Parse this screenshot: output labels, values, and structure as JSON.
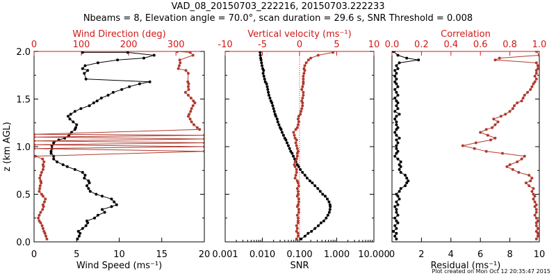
{
  "figure": {
    "title_line1": "VAD_08_20150703_222216, 20150703.222233",
    "title_line2": "Nbeams = 8, Elevation angle = 70.0°, scan duration = 29.6 s, SNR Threshold = 0.008",
    "footer": "Plot created on Mon Oct 12 20:35:47 2015"
  },
  "colors": {
    "black_series": "#000000",
    "red_series": "#b03a2e",
    "axis": "#000000",
    "red_axis": "#d01818"
  },
  "chart_data": [
    {
      "type": "line",
      "ylabel": "z (km AGL)",
      "ylim": [
        0,
        2
      ],
      "yticks": [
        "0.0",
        "0.5",
        "1.0",
        "1.5",
        "2.0"
      ],
      "xlabel": "Wind Speed (ms⁻¹)",
      "xlim": [
        0,
        20
      ],
      "xticks": [
        "0",
        "5",
        "10",
        "15",
        "20"
      ],
      "xlabel_top": "Wind Direction (deg)",
      "xlim_top": [
        0,
        360
      ],
      "xticks_top": [
        "0",
        "100",
        "200",
        "300"
      ],
      "series": [
        {
          "axis": "bottom",
          "color": "black",
          "x": [
            5.1,
            5.3,
            5.4,
            5.2,
            5.7,
            6.1,
            6.3,
            6.2,
            7.1,
            7.5,
            8.3,
            8.0,
            9.1,
            9.7,
            9.4,
            9.1,
            8.0,
            7.3,
            6.6,
            6.4,
            6.2,
            6.5,
            6.4,
            5.9,
            6.0,
            5.7,
            4.8,
            3.9,
            3.4,
            2.7,
            2.3,
            2.3,
            2.0,
            2.0,
            2.1,
            2.1,
            2.3,
            2.9,
            3.6,
            4.1,
            4.4,
            4.8,
            4.9,
            5.0,
            4.6,
            4.2,
            4.0,
            4.3,
            4.8,
            5.5,
            6.5,
            7.0,
            7.4,
            7.9,
            8.7,
            9.3,
            10.3,
            11.2,
            12.4,
            13.6,
            6.1,
            5.9,
            6.3,
            5.7,
            6.0,
            7.5,
            9.8,
            12.9,
            14.1,
            11.0,
            5.7
          ],
          "y": [
            0.03,
            0.06,
            0.09,
            0.11,
            0.14,
            0.17,
            0.2,
            0.22,
            0.25,
            0.28,
            0.31,
            0.34,
            0.37,
            0.39,
            0.42,
            0.45,
            0.48,
            0.5,
            0.53,
            0.56,
            0.59,
            0.62,
            0.64,
            0.67,
            0.7,
            0.73,
            0.76,
            0.79,
            0.81,
            0.84,
            0.87,
            0.9,
            0.93,
            0.95,
            0.98,
            1.01,
            1.04,
            1.07,
            1.09,
            1.12,
            1.15,
            1.18,
            1.2,
            1.23,
            1.26,
            1.29,
            1.32,
            1.34,
            1.37,
            1.4,
            1.43,
            1.46,
            1.48,
            1.51,
            1.54,
            1.57,
            1.6,
            1.63,
            1.66,
            1.68,
            1.71,
            1.77,
            1.8,
            1.82,
            1.85,
            1.88,
            1.91,
            1.93,
            1.96,
            1.99,
            1.99
          ]
        },
        {
          "axis": "top",
          "color": "red",
          "x": [
            27,
            25,
            23,
            21,
            19,
            17,
            14,
            11,
            9,
            11,
            14,
            18,
            20,
            19,
            22,
            24,
            19,
            16,
            11,
            12,
            13,
            15,
            14,
            12,
            14,
            16,
            19,
            20,
            19,
            21,
            18,
            3,
            360,
            0,
            360,
            0,
            360,
            0,
            360,
            0,
            360,
            0,
            350,
            345,
            338,
            333,
            330,
            326,
            328,
            331,
            333,
            336,
            340,
            337,
            332,
            326,
            320,
            327,
            326,
            327,
            325,
            326,
            321,
            305,
            307,
            309,
            308,
            336,
            330,
            303
          ],
          "y": [
            0.03,
            0.06,
            0.09,
            0.11,
            0.14,
            0.17,
            0.2,
            0.22,
            0.25,
            0.28,
            0.31,
            0.34,
            0.37,
            0.39,
            0.42,
            0.45,
            0.48,
            0.5,
            0.53,
            0.56,
            0.59,
            0.62,
            0.64,
            0.67,
            0.7,
            0.73,
            0.76,
            0.79,
            0.81,
            0.84,
            0.87,
            0.9,
            0.95,
            0.98,
            1.0,
            1.02,
            1.04,
            1.06,
            1.08,
            1.1,
            1.12,
            1.13,
            1.18,
            1.2,
            1.23,
            1.26,
            1.29,
            1.32,
            1.34,
            1.37,
            1.4,
            1.43,
            1.46,
            1.48,
            1.51,
            1.54,
            1.57,
            1.6,
            1.63,
            1.66,
            1.68,
            1.77,
            1.8,
            1.82,
            1.85,
            1.88,
            1.91,
            1.96,
            1.99,
            2.0
          ]
        }
      ]
    },
    {
      "type": "line",
      "xlabel": "SNR",
      "xscale": "log",
      "xlim": [
        0.001,
        10
      ],
      "xticks": [
        "0.001",
        "0.010",
        "0.100",
        "1.000",
        "10.000"
      ],
      "xlabel_top": "Vertical velocity (ms⁻¹)",
      "xlim_top": [
        -10,
        10
      ],
      "xticks_top": [
        "-10",
        "-5",
        "0",
        "5",
        "10"
      ],
      "reference_line_top": 0,
      "series": [
        {
          "axis": "bottom",
          "color": "black",
          "x": [
            0.11,
            0.14,
            0.17,
            0.21,
            0.26,
            0.32,
            0.38,
            0.45,
            0.52,
            0.58,
            0.63,
            0.66,
            0.67,
            0.66,
            0.62,
            0.56,
            0.49,
            0.42,
            0.36,
            0.31,
            0.26,
            0.22,
            0.19,
            0.16,
            0.14,
            0.12,
            0.105,
            0.095,
            0.087,
            0.08,
            0.074,
            0.068,
            0.063,
            0.058,
            0.054,
            0.05,
            0.046,
            0.043,
            0.04,
            0.037,
            0.034,
            0.032,
            0.03,
            0.028,
            0.026,
            0.025,
            0.023,
            0.022,
            0.021,
            0.02,
            0.019,
            0.018,
            0.017,
            0.016,
            0.015,
            0.0145,
            0.014,
            0.0135,
            0.013,
            0.012,
            0.0115,
            0.011,
            0.0105,
            0.0108,
            0.0102,
            0.0098,
            0.0095,
            0.0092,
            0.009,
            0.0088,
            0.0087
          ],
          "y": [
            0.03,
            0.06,
            0.09,
            0.11,
            0.14,
            0.17,
            0.2,
            0.22,
            0.25,
            0.28,
            0.31,
            0.34,
            0.37,
            0.39,
            0.42,
            0.45,
            0.48,
            0.5,
            0.53,
            0.56,
            0.59,
            0.62,
            0.64,
            0.67,
            0.7,
            0.73,
            0.76,
            0.79,
            0.81,
            0.84,
            0.87,
            0.9,
            0.93,
            0.95,
            0.98,
            1.01,
            1.04,
            1.07,
            1.09,
            1.12,
            1.15,
            1.18,
            1.2,
            1.23,
            1.26,
            1.29,
            1.32,
            1.34,
            1.37,
            1.4,
            1.43,
            1.46,
            1.48,
            1.51,
            1.54,
            1.57,
            1.6,
            1.63,
            1.66,
            1.68,
            1.71,
            1.74,
            1.77,
            1.8,
            1.82,
            1.85,
            1.88,
            1.91,
            1.93,
            1.96,
            1.99
          ]
        },
        {
          "axis": "top",
          "color": "red",
          "x": [
            -0.4,
            -0.2,
            -0.2,
            -0.4,
            -0.3,
            -0.4,
            -0.2,
            -0.2,
            -0.2,
            -0.3,
            -0.1,
            -0.1,
            -0.3,
            -0.2,
            -0.1,
            -0.1,
            -0.3,
            -0.2,
            -0.2,
            -0.3,
            -0.1,
            -0.2,
            -0.3,
            -0.6,
            -0.5,
            -0.4,
            -0.4,
            -0.6,
            -0.7,
            -0.6,
            -0.4,
            -0.3,
            -0.3,
            -0.2,
            -0.3,
            -0.4,
            -0.5,
            -0.4,
            -0.6,
            -0.7,
            -0.8,
            -0.5,
            -0.3,
            -0.2,
            -0.1,
            -0.2,
            -0.1,
            0.1,
            0.2,
            0.3,
            0.4,
            0.4,
            0.3,
            0.4,
            0.5,
            0.5,
            0.3,
            0.4,
            0.5,
            0.5,
            0.5,
            0.5,
            0.6,
            0.7,
            0.6,
            0.7,
            0.9,
            1.2,
            1.5,
            2.5,
            4.5
          ],
          "y": [
            0.03,
            0.06,
            0.09,
            0.11,
            0.14,
            0.17,
            0.2,
            0.22,
            0.25,
            0.28,
            0.31,
            0.34,
            0.37,
            0.39,
            0.42,
            0.45,
            0.48,
            0.5,
            0.53,
            0.56,
            0.59,
            0.62,
            0.64,
            0.67,
            0.7,
            0.73,
            0.76,
            0.79,
            0.81,
            0.84,
            0.87,
            0.9,
            0.93,
            0.95,
            0.98,
            1.01,
            1.04,
            1.07,
            1.09,
            1.12,
            1.15,
            1.18,
            1.2,
            1.23,
            1.26,
            1.29,
            1.32,
            1.34,
            1.37,
            1.4,
            1.43,
            1.46,
            1.48,
            1.51,
            1.54,
            1.57,
            1.6,
            1.63,
            1.66,
            1.68,
            1.71,
            1.74,
            1.77,
            1.8,
            1.82,
            1.85,
            1.88,
            1.91,
            1.93,
            1.96,
            1.99
          ]
        }
      ]
    },
    {
      "type": "line",
      "xlabel": "Residual (ms⁻¹)",
      "xlim": [
        0,
        10
      ],
      "xticks": [
        "0",
        "2",
        "4",
        "6",
        "8",
        "10"
      ],
      "xlabel_top": "Correlation",
      "xlim_top": [
        0,
        1
      ],
      "xticks_top": [
        "0.0",
        "0.2",
        "0.4",
        "0.6",
        "0.8",
        "1.0"
      ],
      "series": [
        {
          "axis": "bottom",
          "color": "black",
          "x": [
            0.3,
            0.2,
            0.3,
            0.1,
            0.3,
            0.2,
            0.4,
            0.3,
            0.2,
            0.4,
            0.3,
            0.3,
            0.2,
            0.4,
            0.3,
            0.5,
            0.4,
            0.3,
            0.5,
            0.6,
            0.9,
            1.0,
            1.1,
            1.0,
            0.9,
            0.6,
            0.5,
            0.6,
            0.5,
            0.6,
            0.4,
            0.2,
            0.3,
            0.4,
            0.3,
            0.3,
            0.4,
            0.3,
            0.5,
            0.3,
            0.2,
            0.3,
            0.4,
            0.3,
            0.3,
            0.2,
            0.3,
            0.5,
            0.2,
            0.4,
            0.3,
            0.4,
            0.3,
            0.2,
            0.4,
            0.3,
            0.2,
            0.4,
            0.3,
            0.2,
            0.3,
            0.2,
            0.3,
            0.2,
            0.4,
            0.3,
            0.5,
            1.8,
            1.0,
            0.4,
            0.1
          ],
          "y": [
            0.03,
            0.06,
            0.09,
            0.11,
            0.14,
            0.17,
            0.2,
            0.22,
            0.25,
            0.28,
            0.31,
            0.34,
            0.37,
            0.39,
            0.42,
            0.45,
            0.48,
            0.5,
            0.53,
            0.56,
            0.59,
            0.62,
            0.64,
            0.67,
            0.7,
            0.73,
            0.76,
            0.79,
            0.81,
            0.84,
            0.87,
            0.9,
            0.93,
            0.95,
            0.98,
            1.01,
            1.04,
            1.07,
            1.09,
            1.12,
            1.15,
            1.18,
            1.2,
            1.23,
            1.26,
            1.29,
            1.32,
            1.34,
            1.37,
            1.4,
            1.43,
            1.46,
            1.48,
            1.51,
            1.54,
            1.57,
            1.6,
            1.63,
            1.66,
            1.68,
            1.71,
            1.74,
            1.77,
            1.8,
            1.82,
            1.85,
            1.88,
            1.91,
            1.93,
            1.96,
            2.0
          ]
        },
        {
          "axis": "top",
          "color": "red",
          "x": [
            0.98,
            0.99,
            0.99,
            0.98,
            0.99,
            0.98,
            0.98,
            0.99,
            0.98,
            0.97,
            0.98,
            0.98,
            0.97,
            0.98,
            0.97,
            0.96,
            0.97,
            0.96,
            0.95,
            0.96,
            0.93,
            0.91,
            0.94,
            0.95,
            0.93,
            0.86,
            0.82,
            0.78,
            0.8,
            0.85,
            0.88,
            0.9,
            0.75,
            0.64,
            0.56,
            0.48,
            0.57,
            0.67,
            0.7,
            0.65,
            0.6,
            0.64,
            0.68,
            0.7,
            0.72,
            0.69,
            0.74,
            0.77,
            0.8,
            0.82,
            0.83,
            0.85,
            0.88,
            0.89,
            0.9,
            0.92,
            0.94,
            0.95,
            0.96,
            0.97,
            0.98,
            0.97,
            0.98,
            0.98,
            0.99,
            0.99,
            0.98,
            0.7,
            0.73,
            1.0,
            0.98
          ],
          "y": [
            0.03,
            0.06,
            0.09,
            0.11,
            0.14,
            0.17,
            0.2,
            0.22,
            0.25,
            0.28,
            0.31,
            0.34,
            0.37,
            0.39,
            0.42,
            0.45,
            0.48,
            0.5,
            0.53,
            0.56,
            0.59,
            0.62,
            0.64,
            0.67,
            0.7,
            0.73,
            0.76,
            0.79,
            0.81,
            0.84,
            0.87,
            0.9,
            0.93,
            0.95,
            0.98,
            1.01,
            1.04,
            1.07,
            1.09,
            1.12,
            1.15,
            1.18,
            1.2,
            1.23,
            1.26,
            1.29,
            1.32,
            1.34,
            1.37,
            1.4,
            1.43,
            1.46,
            1.48,
            1.51,
            1.54,
            1.57,
            1.6,
            1.63,
            1.66,
            1.68,
            1.71,
            1.74,
            1.77,
            1.8,
            1.82,
            1.85,
            1.88,
            1.91,
            1.93,
            1.96,
            2.0
          ]
        }
      ]
    }
  ]
}
